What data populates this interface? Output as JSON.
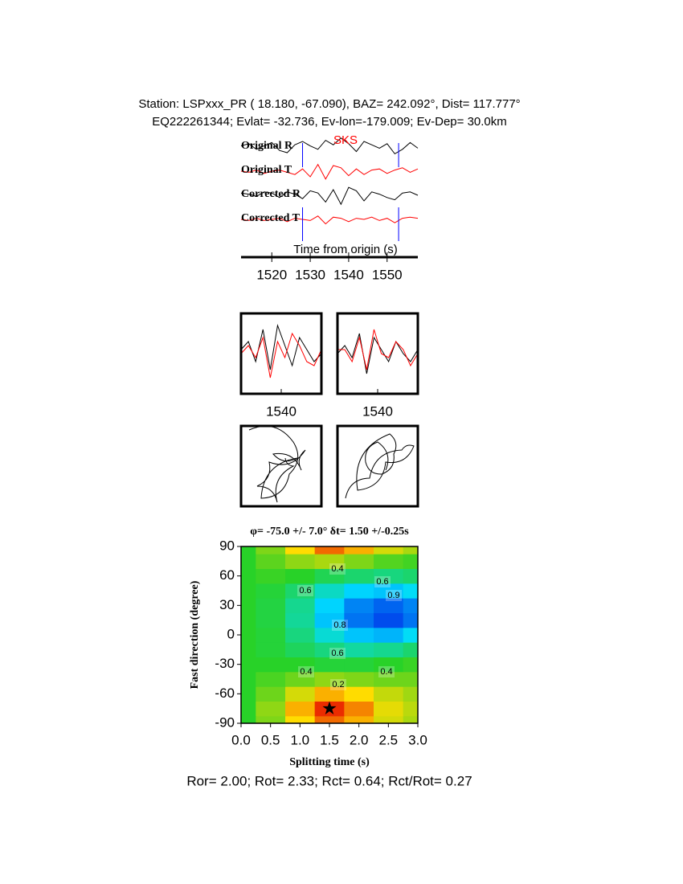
{
  "header": {
    "line1": "Station: LSPxxx_PR (  18.180,  -67.090), BAZ=  242.092°, Dist=  117.777°",
    "line2": "EQ222261344; Evlat= -32.736, Ev-lon=-179.009; Ev-Dep= 30.0km"
  },
  "chart_data": [
    {
      "type": "line",
      "phase": "SKS",
      "xlabel": "Time from origin (s)",
      "xlim": [
        1512,
        1558
      ],
      "xticks": [
        1520,
        1530,
        1540,
        1550
      ],
      "x": [
        1512,
        1514,
        1516,
        1518,
        1520,
        1522,
        1524,
        1526,
        1528,
        1530,
        1532,
        1534,
        1536,
        1538,
        1540,
        1542,
        1544,
        1546,
        1548,
        1550,
        1552,
        1554,
        1556,
        1558
      ],
      "series": [
        {
          "name": "Original R",
          "color": "#000000",
          "values": [
            0.1,
            0.3,
            -0.2,
            0.1,
            0.4,
            -0.3,
            -0.5,
            0.2,
            0.5,
            0.1,
            -0.2,
            0.6,
            0.2,
            0.8,
            0.3,
            -0.4,
            0.5,
            0.2,
            -0.1,
            0.3,
            -0.6,
            -0.2,
            0.4,
            -0.1
          ]
        },
        {
          "name": "Original T",
          "color": "#ff0000",
          "values": [
            0.0,
            -0.1,
            0.1,
            -0.2,
            0.0,
            0.1,
            -0.1,
            -0.3,
            0.2,
            -0.5,
            0.6,
            -0.7,
            0.5,
            0.3,
            -0.4,
            0.2,
            -0.3,
            0.1,
            0.2,
            -0.2,
            0.1,
            0.3,
            -0.1,
            0.2
          ]
        },
        {
          "name": "Corrected R",
          "color": "#000000",
          "values": [
            0.2,
            0.1,
            -0.1,
            0.3,
            0.2,
            -0.2,
            0.3,
            0.1,
            -0.3,
            0.4,
            0.2,
            -0.6,
            0.5,
            -0.8,
            0.7,
            0.4,
            -0.5,
            0.3,
            0.1,
            -0.2,
            -0.4,
            0.2,
            0.3,
            0.0
          ]
        },
        {
          "name": "Corrected T",
          "color": "#ff0000",
          "values": [
            0.0,
            -0.1,
            0.1,
            -0.1,
            0.0,
            0.1,
            -0.2,
            0.1,
            0.0,
            -0.1,
            0.3,
            -0.4,
            0.2,
            0.1,
            -0.2,
            0.1,
            0.0,
            0.2,
            -0.1,
            0.1,
            -0.3,
            0.1,
            0.2,
            0.1
          ]
        }
      ],
      "window": [
        1528,
        1553
      ],
      "window_color": "#0000ff"
    },
    {
      "type": "line",
      "xlim": [
        1529,
        1551
      ],
      "xticks": [
        1540
      ],
      "ylim": [
        -1,
        1
      ],
      "x": [
        1529,
        1531,
        1533,
        1535,
        1537,
        1539,
        1541,
        1543,
        1545,
        1547,
        1549,
        1551
      ],
      "series": [
        {
          "color": "#000000",
          "values": [
            0.1,
            0.3,
            -0.2,
            0.6,
            -0.4,
            0.7,
            0.2,
            -0.3,
            0.4,
            0.1,
            -0.2,
            0.0
          ]
        },
        {
          "color": "#ff0000",
          "values": [
            0.0,
            0.2,
            -0.1,
            0.4,
            -0.6,
            0.3,
            -0.1,
            0.5,
            0.2,
            -0.2,
            -0.3,
            0.1
          ]
        }
      ]
    },
    {
      "type": "line",
      "xlim": [
        1529,
        1551
      ],
      "xticks": [
        1540
      ],
      "ylim": [
        -1,
        1
      ],
      "x": [
        1529,
        1531,
        1533,
        1535,
        1537,
        1539,
        1541,
        1543,
        1545,
        1547,
        1549,
        1551
      ],
      "series": [
        {
          "color": "#000000",
          "values": [
            0.0,
            0.2,
            -0.1,
            0.5,
            -0.5,
            0.4,
            0.1,
            -0.2,
            0.3,
            0.0,
            -0.2,
            0.1
          ]
        },
        {
          "color": "#ff0000",
          "values": [
            0.1,
            0.1,
            -0.2,
            0.4,
            -0.4,
            0.6,
            0.0,
            -0.1,
            0.3,
            0.1,
            -0.3,
            0.0
          ]
        }
      ]
    },
    {
      "type": "particle",
      "xlim": [
        -1,
        1
      ],
      "ylim": [
        -1,
        1
      ],
      "x": [
        -0.8,
        0.3,
        0.2,
        -0.5,
        0.4,
        -0.2,
        0.5,
        0.6,
        -0.3,
        -0.6,
        -0.1,
        0.3,
        0.1
      ],
      "values": [
        0.9,
        0.6,
        -0.2,
        -0.8,
        0.2,
        0.3,
        -0.1,
        0.4,
        0.1,
        -0.5,
        -0.9,
        0.0,
        0.2
      ]
    },
    {
      "type": "particle",
      "xlim": [
        -1,
        1
      ],
      "ylim": [
        -1,
        1
      ],
      "x": [
        -0.8,
        -0.2,
        0.6,
        0.9,
        0.2,
        -0.5,
        0.3,
        0.4,
        0.1,
        -0.3,
        0.0,
        0.2
      ],
      "values": [
        -0.8,
        -0.3,
        0.4,
        0.5,
        0.1,
        -0.6,
        0.8,
        0.3,
        -0.2,
        0.1,
        0.6,
        -0.1
      ]
    },
    {
      "type": "contour",
      "title": "φ= -75.0 +/- 7.0° δt= 1.50 +/-0.25s",
      "xlabel": "Splitting time (s)",
      "ylabel": "Fast direction (degree)",
      "xlim": [
        0,
        3
      ],
      "ylim": [
        -90,
        90
      ],
      "xticks": [
        {
          "value": 0,
          "label": "0.0"
        },
        0.5,
        {
          "value": 1,
          "label": "1.0"
        },
        1.5,
        {
          "value": 2,
          "label": "2.0"
        },
        2.5,
        {
          "value": 3,
          "label": "3.0"
        }
      ],
      "yticks": [
        -90,
        -60,
        -30,
        0,
        30,
        60,
        90
      ],
      "x": [
        0,
        0.5,
        1,
        1.5,
        2,
        2.5,
        3
      ],
      "y": [
        -90,
        -75,
        -60,
        -45,
        -30,
        -15,
        0,
        15,
        30,
        45,
        60,
        75,
        90
      ],
      "z": [
        [
          0.5,
          0.4,
          0.25,
          0.12,
          0.2,
          0.3,
          0.35
        ],
        [
          0.5,
          0.38,
          0.2,
          0.05,
          0.15,
          0.28,
          0.33
        ],
        [
          0.5,
          0.42,
          0.3,
          0.2,
          0.25,
          0.32,
          0.36
        ],
        [
          0.5,
          0.46,
          0.42,
          0.38,
          0.4,
          0.42,
          0.42
        ],
        [
          0.5,
          0.5,
          0.5,
          0.52,
          0.52,
          0.5,
          0.48
        ],
        [
          0.5,
          0.52,
          0.56,
          0.6,
          0.64,
          0.62,
          0.58
        ],
        [
          0.5,
          0.52,
          0.6,
          0.7,
          0.78,
          0.8,
          0.74
        ],
        [
          0.5,
          0.53,
          0.63,
          0.78,
          0.88,
          0.93,
          0.88
        ],
        [
          0.5,
          0.53,
          0.62,
          0.76,
          0.86,
          0.9,
          0.86
        ],
        [
          0.5,
          0.52,
          0.58,
          0.68,
          0.76,
          0.78,
          0.74
        ],
        [
          0.5,
          0.48,
          0.5,
          0.55,
          0.58,
          0.6,
          0.58
        ],
        [
          0.5,
          0.44,
          0.38,
          0.35,
          0.4,
          0.45,
          0.47
        ],
        [
          0.5,
          0.4,
          0.25,
          0.12,
          0.2,
          0.3,
          0.35
        ]
      ],
      "contour_labels": [
        "0.4",
        "0.6",
        "0.6",
        "0.8",
        "0.9",
        "0.6",
        "0.4",
        "0.4",
        "0.2"
      ],
      "best": {
        "x": 1.5,
        "y": -75
      }
    }
  ],
  "footer": "Ror= 2.00; Rot= 2.33; Rct= 0.64; Rct/Rot= 0.27"
}
